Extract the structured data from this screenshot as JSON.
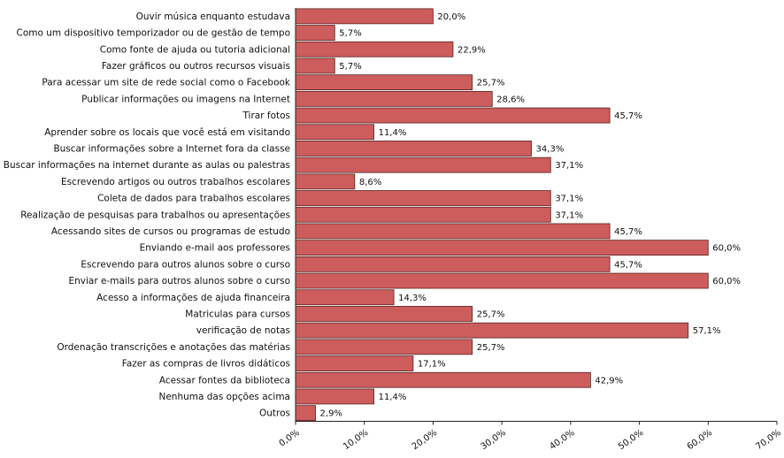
{
  "chart_data": {
    "type": "bar",
    "orientation": "horizontal",
    "categories": [
      "Ouvir música enquanto estudava",
      "Como um dispositivo temporizador ou de gestão de tempo",
      "Como fonte de ajuda ou tutoria adicional",
      "Fazer gráficos ou outros recursos visuais",
      "Para acessar um site de rede social como o Facebook",
      "Publicar informações ou imagens na Internet",
      "Tirar fotos",
      "Aprender sobre os locais que você está em visitando",
      "Buscar informações sobre a Internet fora da classe",
      "Buscar informações na internet durante as aulas ou palestras",
      "Escrevendo artigos ou outros trabalhos escolares",
      "Coleta de dados para trabalhos escolares",
      "Realização de pesquisas para trabalhos ou apresentações",
      "Acessando sites de cursos ou programas de estudo",
      "Enviando e-mail aos professores",
      "Escrevendo para outros alunos sobre o curso",
      "Enviar e-mails para outros alunos sobre o curso",
      "Acesso a informações de ajuda financeira",
      "Matriculas para cursos",
      "verificação de notas",
      "Ordenação transcrições e anotações das matérias",
      "Fazer as compras de livros didáticos",
      "Acessar fontes da biblioteca",
      "Nenhuma das opções acima",
      "Outros"
    ],
    "values": [
      20.0,
      5.7,
      22.9,
      5.7,
      25.7,
      28.6,
      45.7,
      11.4,
      34.3,
      37.1,
      8.6,
      37.1,
      37.1,
      45.7,
      60.0,
      45.7,
      60.0,
      14.3,
      25.7,
      57.1,
      25.7,
      17.1,
      42.9,
      11.4,
      2.9
    ],
    "value_labels": [
      "20,0%",
      "5,7%",
      "22,9%",
      "5,7%",
      "25,7%",
      "28,6%",
      "45,7%",
      "11,4%",
      "34,3%",
      "37,1%",
      "8,6%",
      "37,1%",
      "37,1%",
      "45,7%",
      "60,0%",
      "45,7%",
      "60,0%",
      "14,3%",
      "25,7%",
      "57,1%",
      "25,7%",
      "17,1%",
      "42,9%",
      "11,4%",
      "2,9%"
    ],
    "xlim": [
      0,
      70
    ],
    "xticks": [
      0,
      10,
      20,
      30,
      40,
      50,
      60,
      70
    ],
    "xtick_labels": [
      "0,0%",
      "10,0%",
      "20,0%",
      "30,0%",
      "40,0%",
      "50,0%",
      "60,0%",
      "70,0%"
    ],
    "grid": false,
    "legend": "none",
    "title": "",
    "xlabel": "",
    "ylabel": "",
    "colors": {
      "bar_fill": "#cd5c5c",
      "bar_stroke": "#5a2222",
      "axis": "#222222",
      "text": "#111111"
    }
  }
}
